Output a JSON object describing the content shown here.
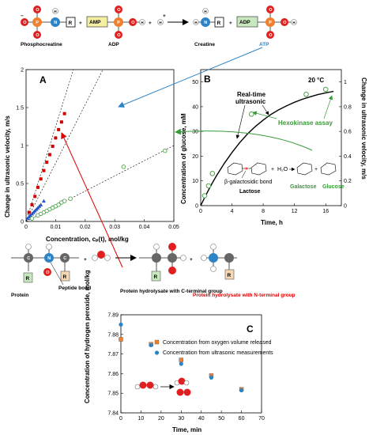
{
  "top_reaction": {
    "phosphocreatine": "Phosphocreatine",
    "adp": "ADP",
    "creatine": "Creatine",
    "atp": "ATP",
    "amp_box": "AMP",
    "adp_box": "ADP",
    "r_box": "R",
    "plus": "+",
    "atoms": {
      "O": "O",
      "P": "P",
      "N": "N",
      "H": "H",
      "C": "C"
    },
    "charge_minus": "−",
    "charge_plus": "+"
  },
  "panel_a": {
    "label": "A",
    "ylabel": "Change in ultrasonic velocity, m/s",
    "xlabel": "Concentration, cₚ(t), mol/kg",
    "xticks": [
      "0",
      "0.01",
      "0.02",
      "0.03",
      "0.04",
      "0.05"
    ],
    "yticks": [
      "0",
      "0.5",
      "1",
      "1.5",
      "2"
    ]
  },
  "panel_b": {
    "label": "B",
    "temp": "20 °C",
    "ylabel_left": "Concentration of glucose, mM",
    "ylabel_right": "Change in ultrasonic velocity, m/s",
    "xlabel": "Time, h",
    "xticks": [
      "0",
      "4",
      "8",
      "12",
      "16"
    ],
    "yticks_left": [
      "0",
      "10",
      "20",
      "30",
      "40",
      "50"
    ],
    "yticks_right": [
      "0",
      "0.2",
      "0.4",
      "0.6",
      "0.8",
      "1"
    ],
    "realtime": "Real-time",
    "ultrasonic": "ultrasonic",
    "hexokinase": "Hexokinase assay",
    "bond": "β-galactosidic bond",
    "lactose": "Lactose",
    "galactose": "Galactose",
    "glucose": "Glucose",
    "water": "H₂O",
    "plus": "+"
  },
  "protein": {
    "protein": "Protein",
    "peptide_bond": "Peptide bond",
    "c_terminal": "Protein hydrolysate with C-terminal group",
    "n_terminal": "Protein hydrolysate with N-terminal group",
    "r": "R",
    "plus": "+"
  },
  "panel_c": {
    "label": "C",
    "ylabel": "Concentration of hydrogen peroxide, mol/kg",
    "xlabel": "Time, min",
    "xticks": [
      "0",
      "10",
      "20",
      "30",
      "40",
      "50",
      "60",
      "70"
    ],
    "yticks": [
      "7.84",
      "7.85",
      "7.86",
      "7.87",
      "7.88",
      "7.89"
    ],
    "legend_oxygen": "Concentration from oxygen volume released",
    "legend_ultra": "Concentration from ultrasonic measurements"
  },
  "chart_data": [
    {
      "type": "scatter",
      "xlim": [
        0,
        0.05
      ],
      "ylim": [
        0,
        2
      ],
      "grid": false,
      "series": [
        {
          "color": "#cc0000",
          "marker": "square",
          "x": [
            0.001,
            0.002,
            0.003,
            0.004,
            0.005,
            0.006,
            0.007,
            0.008,
            0.009,
            0.01,
            0.011,
            0.012,
            0.013
          ],
          "y": [
            0.12,
            0.22,
            0.33,
            0.45,
            0.56,
            0.67,
            0.78,
            0.88,
            0.99,
            1.1,
            1.21,
            1.31,
            1.42
          ]
        },
        {
          "color": "#2255cc",
          "marker": "triangle",
          "x": [
            0.0005,
            0.001,
            0.0015,
            0.002,
            0.0025,
            0.003,
            0.0035,
            0.004,
            0.0045,
            0.005,
            0.006
          ],
          "y": [
            0.04,
            0.06,
            0.08,
            0.1,
            0.12,
            0.14,
            0.16,
            0.18,
            0.2,
            0.22,
            0.27
          ]
        },
        {
          "color": "#3a9a3a",
          "marker": "open-circle",
          "x": [
            0.002,
            0.004,
            0.005,
            0.006,
            0.007,
            0.008,
            0.009,
            0.01,
            0.011,
            0.012,
            0.013,
            0.015,
            0.033,
            0.047
          ],
          "y": [
            0.04,
            0.08,
            0.1,
            0.12,
            0.14,
            0.16,
            0.18,
            0.2,
            0.22,
            0.25,
            0.27,
            0.3,
            0.72,
            0.93
          ]
        }
      ]
    },
    {
      "type": "line",
      "xlim": [
        0,
        18
      ],
      "ylim_left": [
        0,
        55
      ],
      "ylim_right": [
        0,
        1.1
      ],
      "curve_x": [
        0,
        0.5,
        1,
        1.5,
        2,
        3,
        4,
        5,
        6,
        7,
        8,
        9,
        10,
        11,
        12,
        13,
        14,
        15,
        16,
        17
      ],
      "curve_y": [
        0,
        3.2,
        6.3,
        9.2,
        12,
        17,
        21.5,
        25.5,
        29,
        32,
        34.6,
        36.9,
        38.8,
        40.4,
        41.8,
        43,
        44,
        44.9,
        45.6,
        46.2
      ],
      "assay_x": [
        0.5,
        1,
        1.5,
        6.5,
        13.5,
        16
      ],
      "assay_y": [
        4,
        8,
        13,
        37,
        45,
        47
      ]
    },
    {
      "type": "scatter",
      "xlim": [
        0,
        70
      ],
      "ylim": [
        7.84,
        7.89
      ],
      "series": [
        {
          "name": "Concentration from oxygen volume released",
          "color": "#f08030",
          "marker": "square",
          "x": [
            0,
            15,
            30,
            45,
            60
          ],
          "y": [
            7.8775,
            7.875,
            7.867,
            7.859,
            7.852
          ]
        },
        {
          "name": "Concentration from ultrasonic measurements",
          "color": "#2c84c6",
          "marker": "circle",
          "x": [
            0,
            15,
            30,
            45,
            60
          ],
          "y": [
            7.885,
            7.8745,
            7.865,
            7.858,
            7.8515
          ]
        }
      ]
    }
  ]
}
